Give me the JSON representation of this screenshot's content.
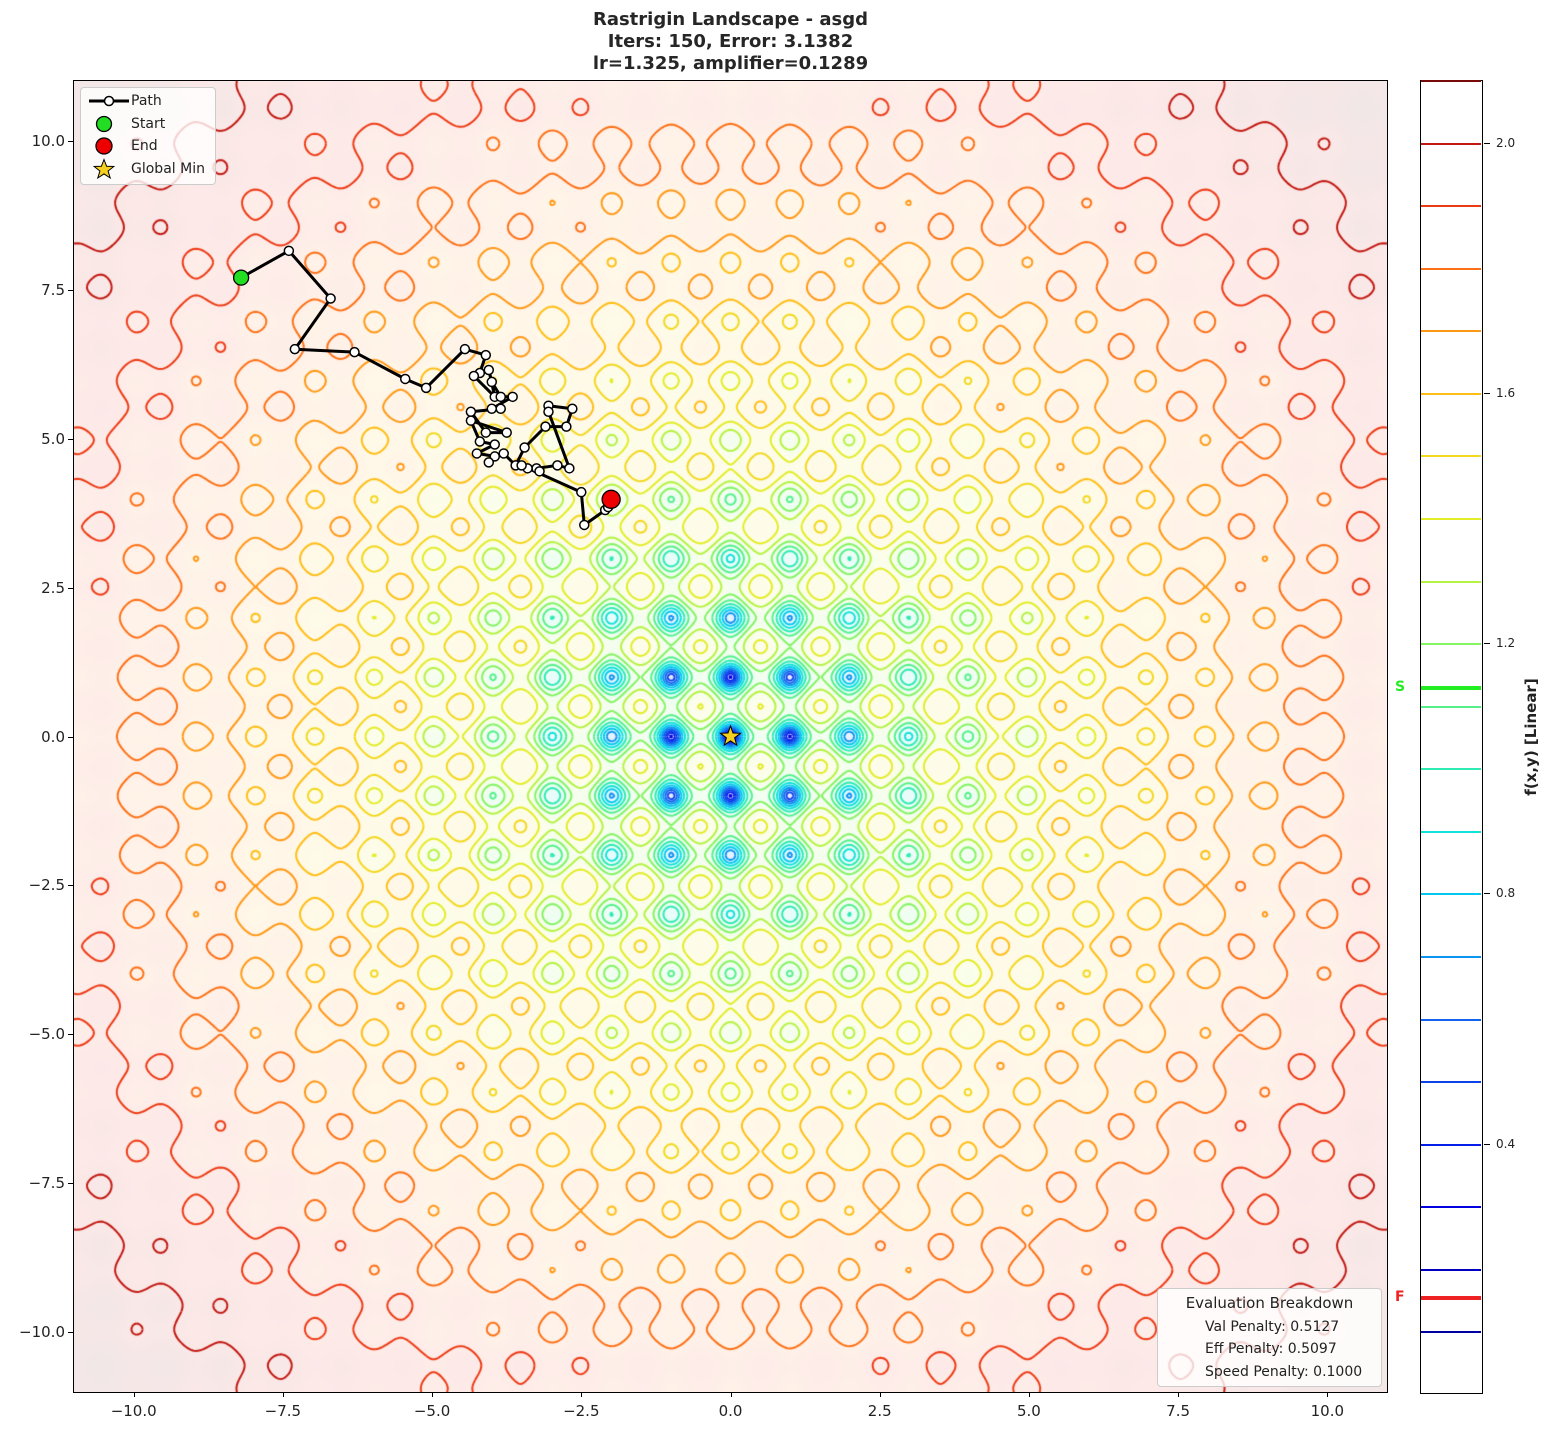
{
  "title": {
    "line1": "Rastrigin Landscape - asgd",
    "line2": "Iters: 150, Error: 3.1382",
    "line3": "lr=1.325, amplifier=0.1289"
  },
  "chart_data": {
    "type": "contour",
    "function": "rastrigin",
    "title": "Rastrigin Landscape - asgd\nIters: 150, Error: 3.1382\nlr=1.325, amplifier=0.1289",
    "xlim": [
      -11,
      11
    ],
    "ylim": [
      -11,
      11
    ],
    "xticks": [
      -10.0,
      -7.5,
      -5.0,
      -2.5,
      0.0,
      2.5,
      5.0,
      7.5,
      10.0
    ],
    "xtick_labels": [
      "−10.0",
      "−7.5",
      "−5.0",
      "−2.5",
      "0.0",
      "2.5",
      "5.0",
      "7.5",
      "10.0"
    ],
    "yticks": [
      10.0,
      7.5,
      5.0,
      2.5,
      0.0,
      -2.5,
      -5.0,
      -7.5,
      -10.0
    ],
    "ytick_labels": [
      "10.0",
      "7.5",
      "5.0",
      "2.5",
      "0.0",
      "−2.5",
      "−5.0",
      "−7.5",
      "−10.0"
    ],
    "grid": false,
    "path": {
      "label": "Path",
      "points": [
        [
          -8.2,
          7.7
        ],
        [
          -7.4,
          8.15
        ],
        [
          -6.7,
          7.35
        ],
        [
          -7.3,
          6.5
        ],
        [
          -6.3,
          6.45
        ],
        [
          -5.45,
          6.0
        ],
        [
          -5.1,
          5.85
        ],
        [
          -4.45,
          6.5
        ],
        [
          -4.1,
          6.4
        ],
        [
          -4.2,
          6.1
        ],
        [
          -4.3,
          6.05
        ],
        [
          -3.95,
          5.7
        ],
        [
          -4.05,
          6.15
        ],
        [
          -4.0,
          5.95
        ],
        [
          -3.85,
          5.7
        ],
        [
          -3.65,
          5.7
        ],
        [
          -4.0,
          5.5
        ],
        [
          -3.85,
          5.5
        ],
        [
          -4.35,
          5.45
        ],
        [
          -4.1,
          5.1
        ],
        [
          -3.75,
          5.1
        ],
        [
          -4.35,
          5.3
        ],
        [
          -4.2,
          4.95
        ],
        [
          -3.95,
          4.9
        ],
        [
          -4.25,
          4.75
        ],
        [
          -3.95,
          4.7
        ],
        [
          -4.05,
          4.6
        ],
        [
          -3.8,
          4.75
        ],
        [
          -3.6,
          4.55
        ],
        [
          -3.45,
          4.85
        ],
        [
          -3.1,
          5.2
        ],
        [
          -2.75,
          5.2
        ],
        [
          -2.65,
          5.5
        ],
        [
          -3.05,
          5.55
        ],
        [
          -3.05,
          5.45
        ],
        [
          -2.7,
          4.5
        ],
        [
          -2.9,
          4.55
        ],
        [
          -3.25,
          4.5
        ],
        [
          -3.4,
          4.5
        ],
        [
          -3.2,
          4.45
        ],
        [
          -3.5,
          4.55
        ],
        [
          -2.5,
          4.1
        ],
        [
          -2.45,
          3.55
        ],
        [
          -2.1,
          3.8
        ],
        [
          -2.05,
          3.85
        ],
        [
          -2.0,
          3.95
        ]
      ],
      "color": "#000000"
    },
    "start": {
      "label": "Start",
      "x": -8.2,
      "y": 7.7,
      "color": "#22dd22"
    },
    "end": {
      "label": "End",
      "x": -2.0,
      "y": 3.98,
      "color": "#ee0000"
    },
    "global_min": {
      "label": "Global Min",
      "x": 0.0,
      "y": 0.0,
      "color": "#f5d020"
    },
    "legend_position": "upper left",
    "colorbar": {
      "label": "f(x,y) [Linear]",
      "ticks": [
        2.0,
        1.6,
        1.2,
        0.8,
        0.4
      ],
      "tick_labels": [
        "2.0",
        "1.6",
        "1.2",
        "0.8",
        "0.4"
      ],
      "range": [
        0.0,
        2.1
      ],
      "levels": [
        0.1,
        0.2,
        0.3,
        0.4,
        0.5,
        0.6,
        0.7,
        0.8,
        0.9,
        1.0,
        1.1,
        1.2,
        1.3,
        1.4,
        1.5,
        1.6,
        1.7,
        1.8,
        1.9,
        2.0,
        2.1
      ],
      "markers": [
        {
          "label": "S",
          "value": 1.13,
          "color": "#22ee22"
        },
        {
          "label": "F",
          "value": 0.155,
          "color": "#ee2222"
        }
      ]
    }
  },
  "legend": {
    "items": [
      {
        "label": "Path"
      },
      {
        "label": "Start"
      },
      {
        "label": "End"
      },
      {
        "label": "Global Min"
      }
    ]
  },
  "evaluation": {
    "title": "Evaluation Breakdown",
    "val_penalty": "Val Penalty: 0.5127",
    "eff_penalty": "Eff Penalty: 0.5097",
    "speed_penalty": "Speed Penalty: 0.1000"
  }
}
